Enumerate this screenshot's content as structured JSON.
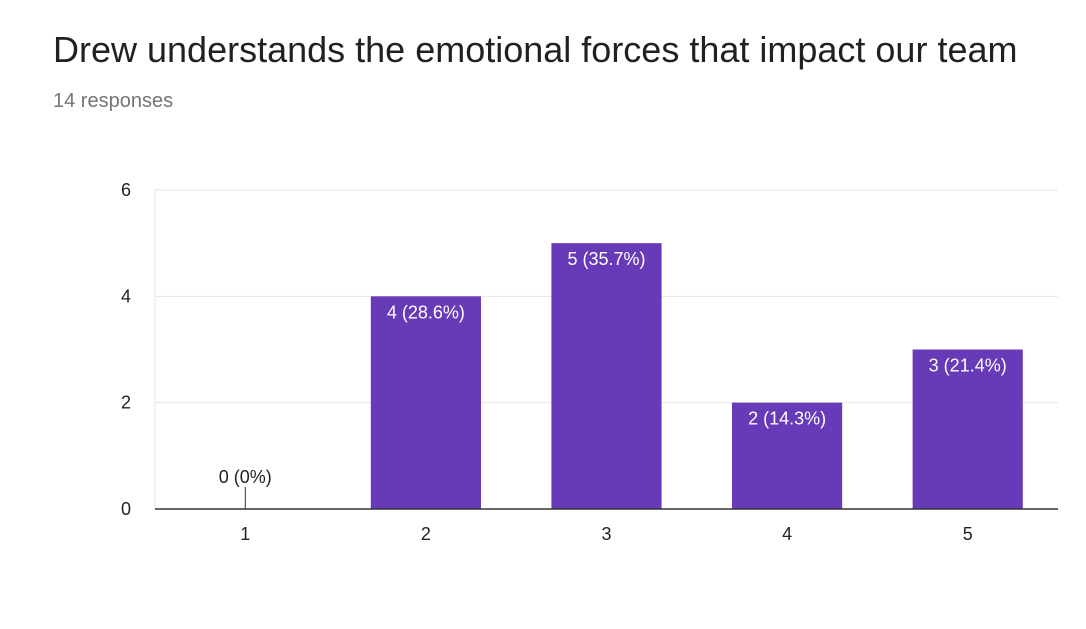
{
  "chart_data": {
    "type": "bar",
    "title": "Drew understands the emotional forces that impact our team",
    "subtitle": "14 responses",
    "categories": [
      "1",
      "2",
      "3",
      "4",
      "5"
    ],
    "values": [
      0,
      4,
      5,
      2,
      3
    ],
    "data_labels": [
      "0 (0%)",
      "4 (28.6%)",
      "5 (35.7%)",
      "2 (14.3%)",
      "3 (21.4%)"
    ],
    "ylim": [
      0,
      6
    ],
    "yticks": [
      0,
      2,
      4,
      6
    ],
    "xlabel": "",
    "ylabel": "",
    "grid": true,
    "legend": "none",
    "bar_color": "#673AB7",
    "label_color_inside": "#FFFFFF",
    "label_color_outside": "#222222"
  }
}
